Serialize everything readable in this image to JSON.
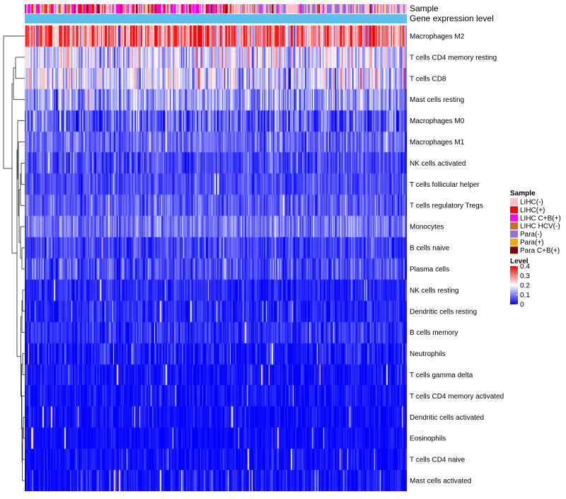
{
  "chart_data": {
    "type": "heatmap",
    "title": "",
    "annotation_tracks": [
      "Sample",
      "Gene expression level"
    ],
    "rows": [
      {
        "label": "Macrophages M2",
        "mean": 0.3,
        "spread": 0.1
      },
      {
        "label": "T cells CD4 memory resting",
        "mean": 0.17,
        "spread": 0.07
      },
      {
        "label": "T cells CD8",
        "mean": 0.16,
        "spread": 0.08
      },
      {
        "label": "Mast cells resting",
        "mean": 0.12,
        "spread": 0.06
      },
      {
        "label": "Macrophages M0",
        "mean": 0.07,
        "spread": 0.07
      },
      {
        "label": "Macrophages M1",
        "mean": 0.08,
        "spread": 0.04
      },
      {
        "label": "NK cells activated",
        "mean": 0.06,
        "spread": 0.04
      },
      {
        "label": "T cells follicular helper",
        "mean": 0.06,
        "spread": 0.035
      },
      {
        "label": "T cells regulatory  Tregs",
        "mean": 0.07,
        "spread": 0.04
      },
      {
        "label": "Monocytes",
        "mean": 0.09,
        "spread": 0.04
      },
      {
        "label": "B cells naive",
        "mean": 0.05,
        "spread": 0.04
      },
      {
        "label": "Plasma cells",
        "mean": 0.06,
        "spread": 0.05
      },
      {
        "label": "NK cells resting",
        "mean": 0.03,
        "spread": 0.03
      },
      {
        "label": "Dendritic cells resting",
        "mean": 0.03,
        "spread": 0.035
      },
      {
        "label": "B cells memory",
        "mean": 0.035,
        "spread": 0.035
      },
      {
        "label": "Neutrophils",
        "mean": 0.02,
        "spread": 0.04
      },
      {
        "label": "T cells gamma delta",
        "mean": 0.015,
        "spread": 0.03
      },
      {
        "label": "T cells CD4 memory activated",
        "mean": 0.015,
        "spread": 0.03
      },
      {
        "label": "Dendritic cells activated",
        "mean": 0.012,
        "spread": 0.025
      },
      {
        "label": "Eosinophils",
        "mean": 0.01,
        "spread": 0.02
      },
      {
        "label": "T cells CD4 naive",
        "mean": 0.012,
        "spread": 0.03
      },
      {
        "label": "Mast cells activated",
        "mean": 0.015,
        "spread": 0.04
      }
    ],
    "n_columns": 400,
    "sample_groups": [
      {
        "label": "LIHC(-)",
        "color": "#ffc0cb"
      },
      {
        "label": "LIHC(+)",
        "color": "#ff0000"
      },
      {
        "label": "LIHC C+B(+)",
        "color": "#ff00ff"
      },
      {
        "label": "LIHC HCV(-)",
        "color": "#d2691e"
      },
      {
        "label": "Para(-)",
        "color": "#9370db"
      },
      {
        "label": "Para(+)",
        "color": "#ffa500"
      },
      {
        "label": "Para C+B(+)",
        "color": "#8b0000"
      }
    ],
    "level_scale": {
      "title": "Level",
      "min": 0,
      "max": 0.4,
      "ticks": [
        "0.4",
        "0.3",
        "0.2",
        "0.1",
        "0"
      ],
      "colors": [
        "#0000ff",
        "#ffffff",
        "#ff0000"
      ]
    },
    "gene_expression_color": "#5bc0eb",
    "legend_title": "Sample"
  }
}
